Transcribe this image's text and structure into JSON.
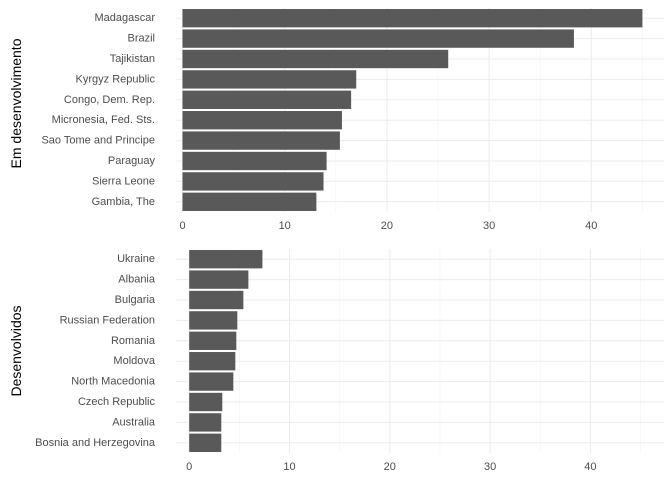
{
  "colors": {
    "bar": "#595959",
    "grid_major": "#ebebeb",
    "grid_minor": "#f3f3f3",
    "text": "#4d4d4d"
  },
  "chart_data": [
    {
      "type": "bar",
      "orientation": "horizontal",
      "title": "",
      "xlabel": "",
      "ylabel": "Em desenvolvimento",
      "xlim": [
        0,
        46
      ],
      "xticks": [
        0,
        10,
        20,
        30,
        40
      ],
      "grid": true,
      "categories": [
        "Madagascar",
        "Brazil",
        "Tajikistan",
        "Kyrgyz Republic",
        "Congo, Dem. Rep.",
        "Micronesia, Fed. Sts.",
        "Sao Tome and Principe",
        "Paraguay",
        "Sierra Leone",
        "Gambia, The"
      ],
      "values": [
        45.0,
        38.3,
        26.0,
        17.0,
        16.5,
        15.6,
        15.4,
        14.1,
        13.8,
        13.1
      ]
    },
    {
      "type": "bar",
      "orientation": "horizontal",
      "title": "",
      "xlabel": "",
      "ylabel": "Desenvolvidos",
      "xlim": [
        0,
        46
      ],
      "xticks": [
        0,
        10,
        20,
        30,
        40
      ],
      "grid": true,
      "categories": [
        "Ukraine",
        "Albania",
        "Bulgaria",
        "Russian Federation",
        "Romania",
        "Moldova",
        "North Macedonia",
        "Czech Republic",
        "Australia",
        "Bosnia and Herzegovina"
      ],
      "values": [
        7.3,
        5.9,
        5.4,
        4.8,
        4.7,
        4.6,
        4.4,
        3.3,
        3.2,
        3.2
      ]
    }
  ]
}
